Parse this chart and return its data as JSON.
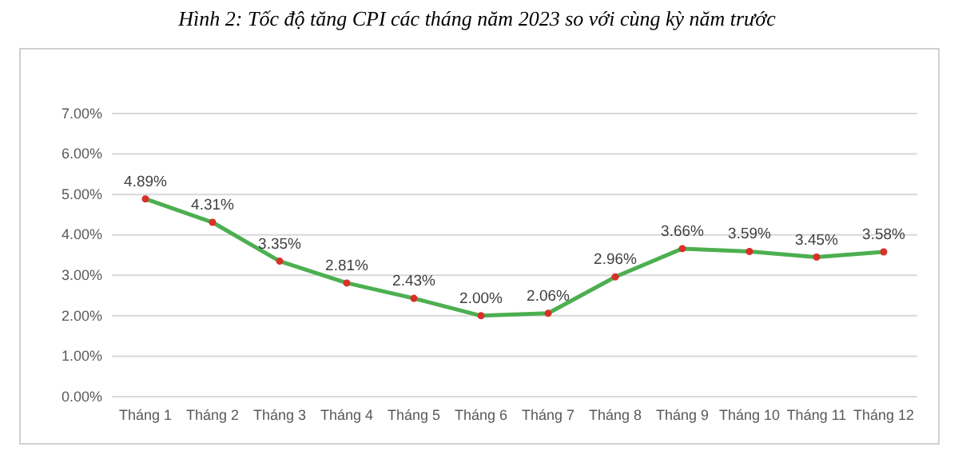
{
  "chart_data": {
    "type": "line",
    "title": "Hình 2: Tốc độ tăng CPI các tháng năm 2023 so với cùng kỳ năm trước",
    "categories": [
      "Tháng 1",
      "Tháng 2",
      "Tháng 3",
      "Tháng 4",
      "Tháng 5",
      "Tháng 6",
      "Tháng 7",
      "Tháng 8",
      "Tháng 9",
      "Tháng 10",
      "Tháng 11",
      "Tháng 12"
    ],
    "series": [
      {
        "color": "#4caf50",
        "values": [
          4.89,
          4.31,
          3.35,
          2.81,
          2.43,
          2.0,
          2.06,
          2.96,
          3.66,
          3.59,
          3.45,
          3.58
        ],
        "value_labels": [
          "4.89%",
          "4.31%",
          "3.35%",
          "2.81%",
          "2.43%",
          "2.00%",
          "2.06%",
          "2.96%",
          "3.66%",
          "3.59%",
          "3.45%",
          "3.58%"
        ]
      }
    ],
    "ylim": [
      0,
      7
    ],
    "yticks": [
      {
        "value": 0,
        "label": "0.00%"
      },
      {
        "value": 1,
        "label": "1.00%"
      },
      {
        "value": 2,
        "label": "2.00%"
      },
      {
        "value": 3,
        "label": "3.00%"
      },
      {
        "value": 4,
        "label": "4.00%"
      },
      {
        "value": 5,
        "label": "5.00%"
      },
      {
        "value": 6,
        "label": "6.00%"
      },
      {
        "value": 7,
        "label": "7.00%"
      }
    ],
    "grid": "y",
    "marker": "circle",
    "line_style": "solid"
  }
}
